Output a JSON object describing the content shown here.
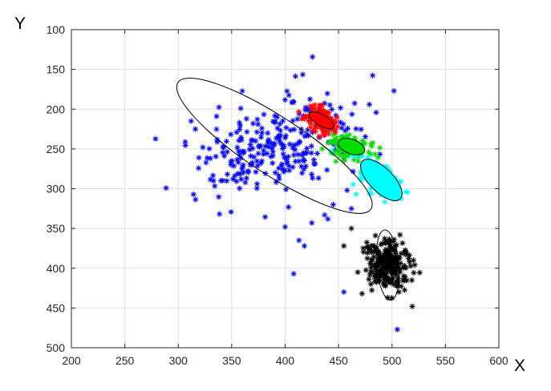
{
  "chart_data": {
    "type": "scatter",
    "xlabel": "X",
    "ylabel": "Y",
    "xlim": [
      200,
      600
    ],
    "ylim": [
      100,
      500
    ],
    "y_reversed": true,
    "grid": true,
    "marker": "asterisk",
    "xticks": [
      "200",
      "250",
      "300",
      "350",
      "400",
      "450",
      "500",
      "550",
      "600"
    ],
    "yticks": [
      "100",
      "150",
      "200",
      "250",
      "300",
      "350",
      "400",
      "450",
      "500"
    ],
    "colors": {
      "blue": "#0000ff",
      "red": "#ff0000",
      "green": "#00dd00",
      "cyan": "#00ffff",
      "black": "#000000",
      "ellipse": "#000000",
      "grid": "#dfdfdf",
      "axis": "#262626"
    },
    "clusters": [
      {
        "color": "blue",
        "center": [
          390,
          246
        ],
        "spread": [
          38,
          30
        ],
        "corr": -0.35,
        "count": 260,
        "extra_points": [
          [
            312,
            215
          ],
          [
            316,
            225
          ],
          [
            323,
            248
          ],
          [
            330,
            262
          ],
          [
            333,
            290
          ],
          [
            340,
            290
          ],
          [
            356,
            281
          ],
          [
            370,
            218
          ],
          [
            400,
            348
          ],
          [
            408,
            407
          ],
          [
            413,
            365
          ],
          [
            418,
            372
          ],
          [
            425,
            343
          ],
          [
            440,
            338
          ],
          [
            455,
            430
          ],
          [
            437,
            333
          ],
          [
            445,
            320
          ],
          [
            458,
            302
          ],
          [
            462,
            325
          ],
          [
            505,
            477
          ]
        ],
        "ellipse": {
          "center": [
            390,
            246
          ],
          "semi_major": 108,
          "semi_minor": 36,
          "angle_deg": 33.3
        }
      },
      {
        "color": "red",
        "center": [
          434,
          214
        ],
        "spread": [
          7,
          8
        ],
        "corr": 0.3,
        "count": 110,
        "extra_points": [
          [
            418,
            212
          ],
          [
            425,
            198
          ],
          [
            432,
            195
          ]
        ],
        "ellipse": {
          "center": [
            434,
            214
          ],
          "semi_major": 13,
          "semi_minor": 7,
          "angle_deg": 30
        }
      },
      {
        "color": "green",
        "center": [
          462,
          247
        ],
        "spread": [
          9,
          7
        ],
        "corr": 0.25,
        "count": 140,
        "extra_points": [
          [
            446,
            240
          ],
          [
            448,
            236
          ]
        ],
        "ellipse": {
          "center": [
            462,
            247
          ],
          "semi_major": 13,
          "semi_minor": 9,
          "angle_deg": 20
        }
      },
      {
        "color": "cyan",
        "center": [
          490,
          289
        ],
        "spread": [
          10,
          11
        ],
        "corr": 0.5,
        "count": 170,
        "extra_points": [
          [
            471,
            280
          ],
          [
            505,
            302
          ],
          [
            443,
            252
          ]
        ],
        "ellipse": {
          "center": [
            490,
            289
          ],
          "semi_major": 25,
          "semi_minor": 15,
          "angle_deg": 45
        }
      },
      {
        "color": "black",
        "center": [
          496,
          396
        ],
        "spread": [
          10,
          16
        ],
        "corr": 0.1,
        "count": 270,
        "extra_points": [
          [
            455,
            372
          ],
          [
            472,
            432
          ],
          [
            496,
            437
          ],
          [
            519,
            448
          ],
          [
            520,
            390
          ],
          [
            462,
            350
          ],
          [
            468,
            405
          ]
        ],
        "ellipse": {
          "center": [
            496,
            396
          ],
          "semi_major": 33,
          "semi_minor": 14,
          "angle_deg": 85
        }
      }
    ]
  }
}
